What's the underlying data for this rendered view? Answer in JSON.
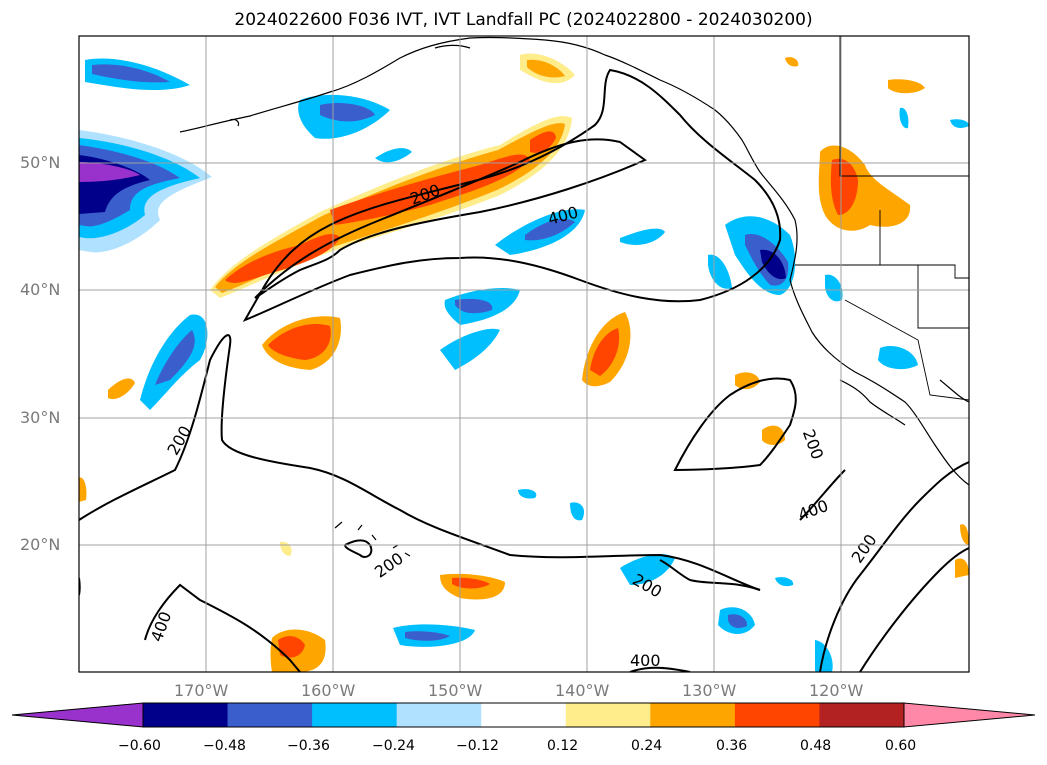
{
  "title": "2024022600 F036 IVT, IVT Landfall PC (2024022800 - 2024030200)",
  "map": {
    "lat_labels": [
      "50°N",
      "40°N",
      "30°N",
      "20°N"
    ],
    "lon_labels": [
      "170°W",
      "160°W",
      "150°W",
      "140°W",
      "130°W",
      "120°W"
    ],
    "extent": {
      "lon": [
        -180,
        -110
      ],
      "lat": [
        10,
        60
      ]
    },
    "gridlines": true,
    "contour_labels": [
      "200",
      "400",
      "400",
      "200",
      "400",
      "200",
      "200",
      "200",
      "400",
      "200"
    ]
  },
  "colorbar": {
    "ticks": [
      "−0.60",
      "−0.48",
      "−0.36",
      "−0.24",
      "−0.12",
      "0.12",
      "0.24",
      "0.36",
      "0.48",
      "0.60"
    ],
    "colors": [
      "#9932CC",
      "#00008B",
      "#3A5FCD",
      "#00BFFF",
      "#B0E2FF",
      "#FFFFFF",
      "#FFEC8B",
      "#FFA500",
      "#FF4500",
      "#B22222",
      "#FF88A8"
    ],
    "extend": "both"
  }
}
